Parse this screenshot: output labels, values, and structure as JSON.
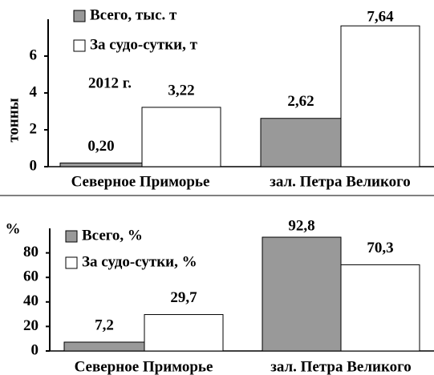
{
  "chart_data": [
    {
      "type": "bar",
      "y_label": "тонны",
      "annotation": "2012 г.",
      "categories": [
        "Северное Приморье",
        "зал. Петра Великого"
      ],
      "series": [
        {
          "name": "Всего, тыс. т",
          "color": "#999999",
          "values": [
            0.2,
            2.62
          ],
          "value_labels": [
            "0,20",
            "2,62"
          ]
        },
        {
          "name": "За судо-сутки, т",
          "color": "#ffffff",
          "values": [
            3.22,
            7.64
          ],
          "value_labels": [
            "3,22",
            "7,64"
          ]
        }
      ],
      "ylim": [
        0,
        8
      ],
      "yticks": [
        0,
        2,
        4,
        6
      ]
    },
    {
      "type": "bar",
      "y_label": "%",
      "categories": [
        "Северное Приморье",
        "зал. Петра Великого"
      ],
      "series": [
        {
          "name": "Всего, %",
          "color": "#999999",
          "values": [
            7.2,
            92.8
          ],
          "value_labels": [
            "7,2",
            "92,8"
          ]
        },
        {
          "name": "За судо-сутки, %",
          "color": "#ffffff",
          "values": [
            29.7,
            70.3
          ],
          "value_labels": [
            "29,7",
            "70,3"
          ]
        }
      ],
      "ylim": [
        0,
        100
      ],
      "yticks": [
        0,
        20,
        40,
        60,
        80
      ]
    }
  ]
}
